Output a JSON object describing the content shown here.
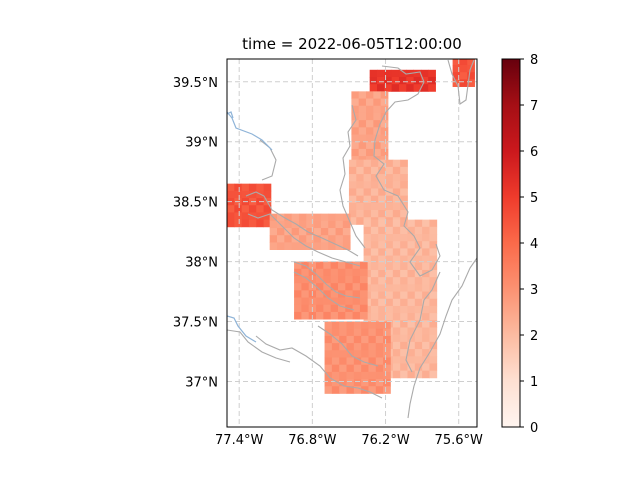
{
  "title": "time = 2022-06-05T12:00:00",
  "map": {
    "lon_range": [
      -77.5,
      -75.45
    ],
    "lat_range": [
      36.62,
      39.69
    ],
    "lon_ticks": [
      {
        "value": -77.4,
        "label": "77.4°W"
      },
      {
        "value": -76.8,
        "label": "76.8°W"
      },
      {
        "value": -76.2,
        "label": "76.2°W"
      },
      {
        "value": -75.6,
        "label": "75.6°W"
      }
    ],
    "lat_ticks": [
      {
        "value": 39.5,
        "label": "39.5°N"
      },
      {
        "value": 39.0,
        "label": "39°N"
      },
      {
        "value": 38.5,
        "label": "38.5°N"
      },
      {
        "value": 38.0,
        "label": "38°N"
      },
      {
        "value": 37.5,
        "label": "37.5°N"
      },
      {
        "value": 37.0,
        "label": "37°N"
      }
    ],
    "gridlines": true,
    "coastline_color": "#aaaaaa",
    "river_color": "#8fb4d8"
  },
  "colorbar": {
    "min": 0,
    "max": 8,
    "colormap": "Reds",
    "ticks": [
      {
        "value": 0,
        "label": "0"
      },
      {
        "value": 1,
        "label": "1"
      },
      {
        "value": 2,
        "label": "2"
      },
      {
        "value": 3,
        "label": "3"
      },
      {
        "value": 4,
        "label": "4"
      },
      {
        "value": 5,
        "label": "5"
      },
      {
        "value": 6,
        "label": "6"
      },
      {
        "value": 7,
        "label": "7"
      },
      {
        "value": 8,
        "label": "8"
      }
    ]
  },
  "chart_data": {
    "type": "heatmap",
    "title": "time = 2022-06-05T12:00:00",
    "xlabel": "",
    "ylabel": "",
    "xlim": [
      -77.5,
      -75.45
    ],
    "ylim": [
      36.62,
      39.69
    ],
    "vmin": 0,
    "vmax": 8,
    "regions": [
      {
        "lat_max": 39.6,
        "lat_min": 39.42,
        "lon_min": -76.33,
        "lon_max": -75.82,
        "value": 5.2
      },
      {
        "lat_max": 39.7,
        "lat_min": 39.48,
        "lon_min": -75.65,
        "lon_max": -75.52,
        "value": 4.5
      },
      {
        "lat_max": 39.42,
        "lat_min": 38.85,
        "lon_min": -76.48,
        "lon_max": -76.18,
        "value": 2.6
      },
      {
        "lat_max": 38.85,
        "lat_min": 38.35,
        "lon_min": -76.5,
        "lon_max": -76.05,
        "value": 2.2
      },
      {
        "lat_max": 38.65,
        "lat_min": 38.3,
        "lon_min": -77.5,
        "lon_max": -77.15,
        "value": 4.5
      },
      {
        "lat_max": 38.4,
        "lat_min": 38.15,
        "lon_min": -77.15,
        "lon_max": -76.5,
        "value": 2.6
      },
      {
        "lat_max": 38.35,
        "lat_min": 37.05,
        "lon_min": -76.38,
        "lon_max": -75.8,
        "value": 2.1
      },
      {
        "lat_max": 38.0,
        "lat_min": 37.52,
        "lon_min": -76.95,
        "lon_max": -76.38,
        "value": 3.1
      },
      {
        "lat_max": 37.5,
        "lat_min": 36.9,
        "lon_min": -76.7,
        "lon_max": -76.2,
        "value": 3.0
      }
    ]
  }
}
